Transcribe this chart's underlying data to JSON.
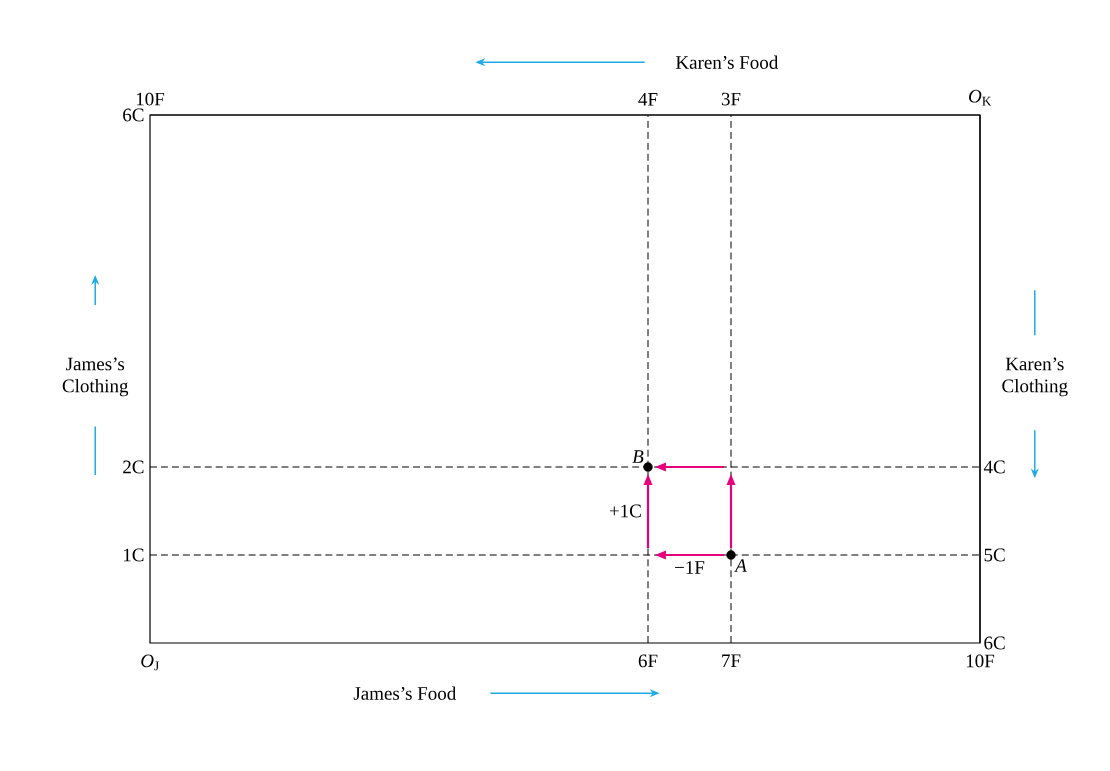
{
  "chart_data": {
    "type": "scatter",
    "xlabel": "James’s Food",
    "x2label": "Karen’s Food",
    "ylabel": "James’s Clothing",
    "y2label": "Karen’s Clothing",
    "x": [
      7,
      6
    ],
    "values": [
      1,
      2
    ],
    "value_labels": [
      "*A*",
      "*B*"
    ],
    "color": "#000000",
    "marker": "circle",
    "xlim": [
      0,
      10
    ],
    "xticks": [
      {
        "value": 0,
        "label": "*O*$_{J}$"
      },
      {
        "value": 6,
        "label": "6F"
      },
      {
        "value": 7,
        "label": "7F"
      },
      {
        "value": 10,
        "label": "10F"
      }
    ],
    "x2lim": [
      10,
      0
    ],
    "x2ticks": [
      {
        "value": 10,
        "label": "10F"
      },
      {
        "value": 4,
        "label": "4F"
      },
      {
        "value": 3,
        "label": "3F"
      },
      {
        "value": 0,
        "label": "*O*$_{K}$"
      }
    ],
    "ylim": [
      0,
      6
    ],
    "yticks": [
      {
        "value": 1,
        "label": "1C"
      },
      {
        "value": 2,
        "label": "2C"
      },
      {
        "value": 6,
        "label": "6C"
      }
    ],
    "y2lim": [
      6,
      0
    ],
    "y2ticks": [
      {
        "value": 6,
        "label": "6C"
      },
      {
        "value": 5,
        "label": "5C"
      },
      {
        "value": 4,
        "label": "4C"
      }
    ],
    "ref_lines": [
      {
        "axis": "x",
        "value": 6,
        "line_style": "dashed"
      },
      {
        "axis": "x",
        "value": 7,
        "line_style": "dashed"
      },
      {
        "axis": "y",
        "value": 1,
        "line_style": "dashed"
      },
      {
        "axis": "y",
        "value": 2,
        "line_style": "dashed"
      }
    ],
    "annotations": [
      {
        "text": "+1C",
        "x": 6,
        "y": 1.5
      },
      {
        "text": "−1F",
        "x": 6.5,
        "y": 1
      }
    ]
  }
}
